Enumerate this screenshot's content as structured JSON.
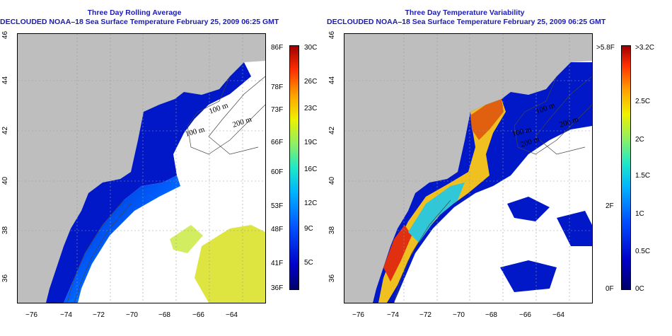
{
  "panels": [
    {
      "title_line1": "Three Day Rolling Average",
      "title_line2": "DECLOUDED NOAA–18 Sea Surface Temperature February 25, 2009 06:25 GMT",
      "colorbar_left_labels": [
        "86F",
        "78F",
        "73F",
        "66F",
        "60F",
        "53F",
        "48F",
        "41F",
        "36F"
      ],
      "colorbar_right_labels": [
        "30C",
        "26C",
        "23C",
        "19C",
        "16C",
        "12C",
        "9C",
        "5C"
      ],
      "contour_labels": [
        "100 m",
        "100 m",
        "200 m"
      ]
    },
    {
      "title_line1": "Three Day Temperature Variability",
      "title_line2": "DECLOUDED NOAA–18 Sea Surface Temperature February 25, 2009 06:25 GMT",
      "colorbar_left_labels": [
        ">5.8F",
        "2F",
        "0F"
      ],
      "colorbar_right_labels": [
        ">3.2C",
        "2.5C",
        "2C",
        "1.5C",
        "1C",
        "0.5C",
        "0C"
      ],
      "contour_labels": [
        "100 m",
        "100 m",
        "200 m",
        "200 m"
      ]
    }
  ],
  "x_ticks": [
    "−76",
    "−74",
    "−72",
    "−70",
    "−68",
    "−66",
    "−64"
  ],
  "y_ticks": [
    "46",
    "44",
    "42",
    "40",
    "38",
    "36"
  ],
  "colors": {
    "title": "#1b1bb4",
    "land": "#bebebe",
    "temp_scale": [
      "#00006a",
      "#0000c8",
      "#0050ff",
      "#00b4ff",
      "#20e8c8",
      "#90f060",
      "#f0f000",
      "#ffa000",
      "#ff3000",
      "#a00000"
    ]
  }
}
